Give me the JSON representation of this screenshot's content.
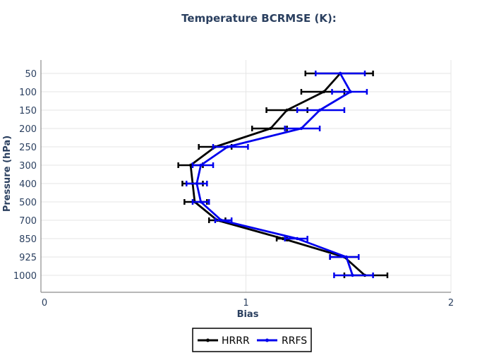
{
  "chart_data": {
    "type": "line",
    "title": "Temperature BCRMSE (K):",
    "xlabel": "Bias",
    "ylabel": "Pressure (hPa)",
    "xlim": [
      0,
      2
    ],
    "xticks": [
      "0",
      "1",
      "2"
    ],
    "x_tick_values": [
      0,
      1,
      2
    ],
    "categories": [
      "50",
      "100",
      "150",
      "200",
      "250",
      "300",
      "400",
      "500",
      "700",
      "850",
      "925",
      "1000"
    ],
    "grid": true,
    "legend_position": "bottom-center",
    "series": [
      {
        "name": "HRRR",
        "color": "#000000",
        "values": [
          1.46,
          1.38,
          1.2,
          1.12,
          0.85,
          0.73,
          0.74,
          0.75,
          0.86,
          1.18,
          1.48,
          1.58
        ],
        "error_low": [
          1.29,
          1.27,
          1.1,
          1.03,
          0.77,
          0.67,
          0.69,
          0.7,
          0.82,
          1.15,
          1.41,
          1.48
        ],
        "error_high": [
          1.62,
          1.48,
          1.3,
          1.2,
          0.93,
          0.79,
          0.79,
          0.81,
          0.9,
          1.2,
          1.55,
          1.69
        ]
      },
      {
        "name": "RRFS",
        "color": "#0000ee",
        "values": [
          1.46,
          1.51,
          1.36,
          1.27,
          0.91,
          0.78,
          0.76,
          0.78,
          0.88,
          1.25,
          1.49,
          1.52
        ],
        "error_low": [
          1.34,
          1.42,
          1.25,
          1.19,
          0.84,
          0.74,
          0.71,
          0.74,
          0.85,
          1.19,
          1.41,
          1.43
        ],
        "error_high": [
          1.58,
          1.59,
          1.48,
          1.36,
          1.01,
          0.84,
          0.81,
          0.82,
          0.93,
          1.3,
          1.55,
          1.62
        ]
      }
    ]
  }
}
